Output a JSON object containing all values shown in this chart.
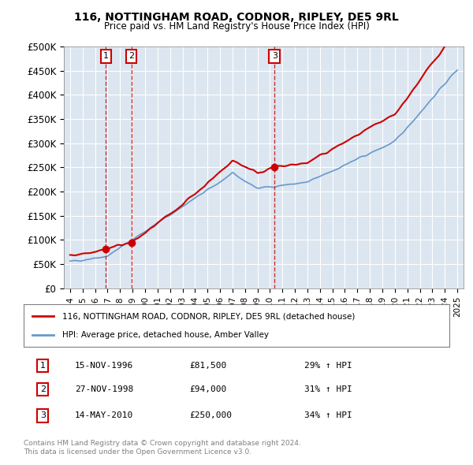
{
  "title": "116, NOTTINGHAM ROAD, CODNOR, RIPLEY, DE5 9RL",
  "subtitle": "Price paid vs. HM Land Registry's House Price Index (HPI)",
  "ylabel_ticks": [
    "£0",
    "£50K",
    "£100K",
    "£150K",
    "£200K",
    "£250K",
    "£300K",
    "£350K",
    "£400K",
    "£450K",
    "£500K"
  ],
  "ytick_values": [
    0,
    50000,
    100000,
    150000,
    200000,
    250000,
    300000,
    350000,
    400000,
    450000,
    500000
  ],
  "ylim": [
    0,
    500000
  ],
  "xlim_start": 1993.5,
  "xlim_end": 2025.5,
  "background_color": "#ffffff",
  "plot_bg_color": "#dce6f0",
  "grid_color": "#ffffff",
  "sales": [
    {
      "label": "1",
      "date": "1996-11-15",
      "price": 81500,
      "x": 1996.87
    },
    {
      "label": "2",
      "date": "1998-11-27",
      "price": 94000,
      "x": 1998.9
    },
    {
      "label": "3",
      "date": "2010-05-14",
      "price": 250000,
      "x": 2010.37
    }
  ],
  "sale_table": [
    {
      "num": "1",
      "date": "15-NOV-1996",
      "price": "£81,500",
      "pct": "29% ↑ HPI"
    },
    {
      "num": "2",
      "date": "27-NOV-1998",
      "price": "£94,000",
      "pct": "31% ↑ HPI"
    },
    {
      "num": "3",
      "date": "14-MAY-2010",
      "price": "£250,000",
      "pct": "34% ↑ HPI"
    }
  ],
  "legend_line1": "116, NOTTINGHAM ROAD, CODNOR, RIPLEY, DE5 9RL (detached house)",
  "legend_line2": "HPI: Average price, detached house, Amber Valley",
  "footer1": "Contains HM Land Registry data © Crown copyright and database right 2024.",
  "footer2": "This data is licensed under the Open Government Licence v3.0.",
  "red_color": "#cc0000",
  "blue_color": "#6699cc",
  "marker_box_color": "#cc0000"
}
